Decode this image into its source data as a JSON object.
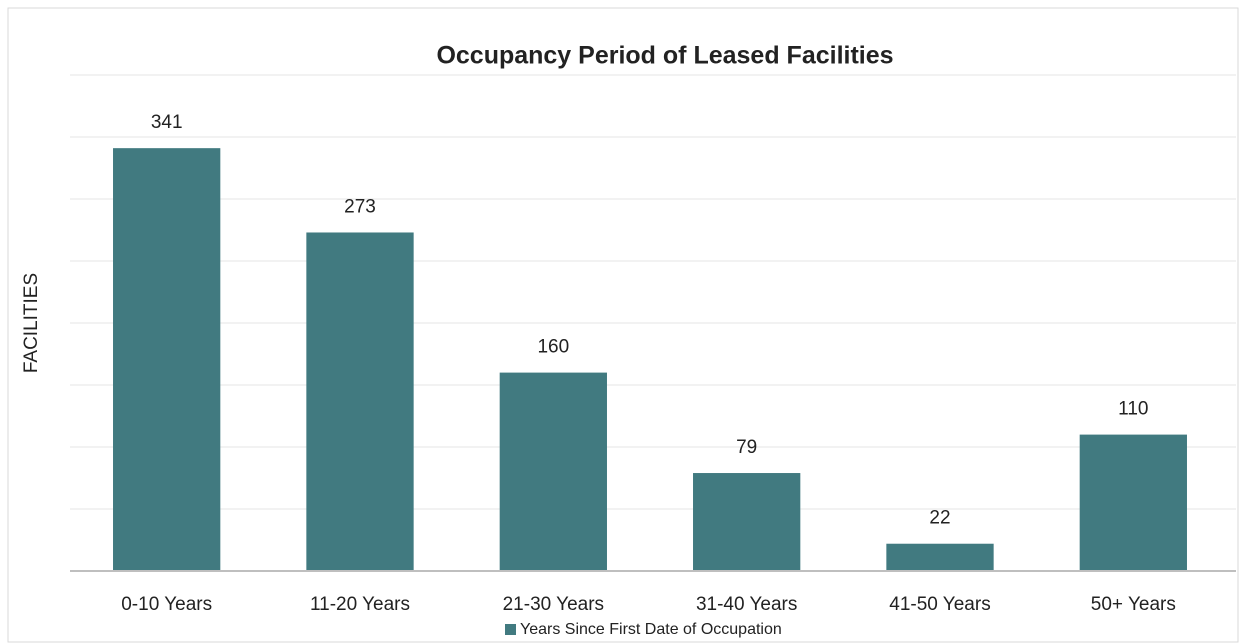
{
  "chart_data": {
    "type": "bar",
    "title": "Occupancy Period of Leased Facilities",
    "y_label": "FACILITIES",
    "categories": [
      "0-10 Years",
      "11-20 Years",
      "21-30 Years",
      "31-40 Years",
      "41-50 Years",
      "50+ Years"
    ],
    "series": [
      {
        "name": "Years Since First Date of Occupation",
        "color": "#417a80",
        "values": [
          341,
          273,
          160,
          79,
          22,
          110
        ]
      }
    ],
    "ylim": [
      0,
      400
    ],
    "yticks": [
      0,
      50,
      100,
      150,
      200,
      250,
      300,
      350,
      400
    ],
    "grid": true,
    "legend": "bottom"
  }
}
